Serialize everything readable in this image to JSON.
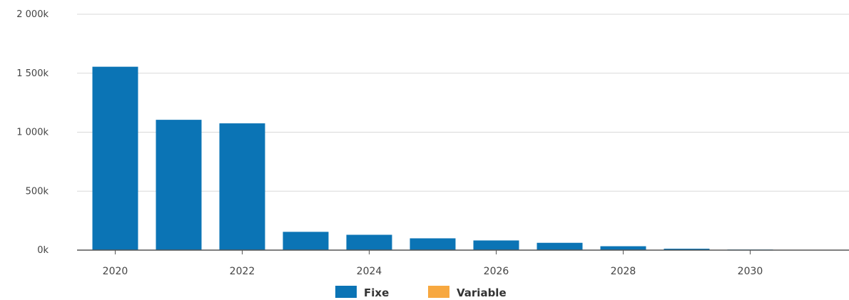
{
  "chart_data": {
    "type": "bar",
    "categories": [
      "2020",
      "2021",
      "2022",
      "2023",
      "2024",
      "2025",
      "2026",
      "2027",
      "2028",
      "2029",
      "2030",
      "2031"
    ],
    "x_tick_labels": [
      "2020",
      "2022",
      "2024",
      "2026",
      "2028",
      "2030"
    ],
    "y_tick_labels": [
      "0k",
      "500k",
      "1 000k",
      "1 500k",
      "2 000k"
    ],
    "y_ticks": [
      0,
      500000,
      1000000,
      1500000,
      2000000
    ],
    "ylim": [
      0,
      2000000
    ],
    "grid": true,
    "legend_position": "bottom-center",
    "series": [
      {
        "name": "Fixe",
        "color": "#0b74b5",
        "values": [
          1555000,
          1105000,
          1075000,
          155000,
          130000,
          100000,
          82000,
          62000,
          33000,
          12000,
          5000,
          1000
        ]
      },
      {
        "name": "Variable",
        "color": "#f7a840",
        "values": [
          0,
          0,
          0,
          0,
          0,
          0,
          0,
          0,
          0,
          0,
          0,
          0
        ]
      }
    ]
  }
}
